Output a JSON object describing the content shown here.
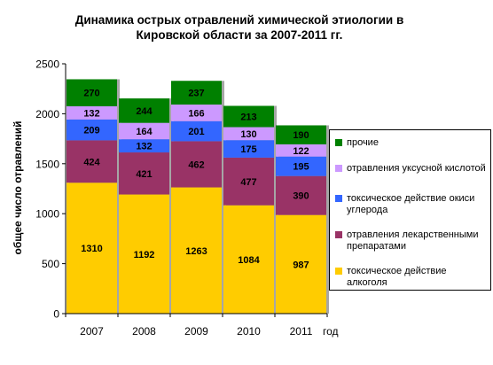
{
  "chart_data": {
    "type": "bar",
    "stacked": true,
    "title_lines": [
      "Динамика острых отравлений химической этиологии в",
      "Кировской области за 2007-2011  гг."
    ],
    "xlabel": "год",
    "ylabel": "общее число отравлений",
    "ylim": [
      0,
      2500
    ],
    "yticks": [
      "0",
      "500",
      "1000",
      "1500",
      "2000",
      "2500"
    ],
    "categories": [
      "2007",
      "2008",
      "2009",
      "2010",
      "2011"
    ],
    "series": [
      {
        "name": "токсическое действие алкоголя",
        "color": "#ffcc00",
        "values": [
          1310,
          1192,
          1263,
          1084,
          987
        ]
      },
      {
        "name": "отравления лекарственными препаратами",
        "color": "#993366",
        "values": [
          424,
          421,
          462,
          477,
          390
        ]
      },
      {
        "name": "токсическое действие окиси углерода",
        "color": "#3366ff",
        "values": [
          209,
          132,
          201,
          175,
          195
        ]
      },
      {
        "name": "отравления уксусной кислотой",
        "color": "#cc99ff",
        "values": [
          132,
          164,
          166,
          130,
          122
        ]
      },
      {
        "name": "прочие",
        "color": "#008000",
        "values": [
          270,
          244,
          237,
          213,
          190
        ]
      }
    ],
    "legend_position": "right",
    "grid": false
  }
}
